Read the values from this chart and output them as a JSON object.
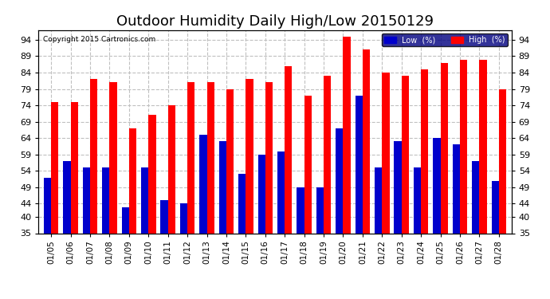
{
  "title": "Outdoor Humidity Daily High/Low 20150129",
  "copyright": "Copyright 2015 Cartronics.com",
  "dates": [
    "01/05",
    "01/06",
    "01/07",
    "01/08",
    "01/09",
    "01/10",
    "01/11",
    "01/12",
    "01/13",
    "01/14",
    "01/15",
    "01/16",
    "01/17",
    "01/18",
    "01/19",
    "01/20",
    "01/21",
    "01/22",
    "01/23",
    "01/24",
    "01/25",
    "01/26",
    "01/27",
    "01/28"
  ],
  "high": [
    75,
    75,
    82,
    81,
    67,
    71,
    74,
    81,
    81,
    79,
    82,
    81,
    86,
    77,
    83,
    95,
    91,
    84,
    83,
    85,
    87,
    88,
    88,
    79
  ],
  "low": [
    52,
    57,
    55,
    55,
    43,
    55,
    45,
    44,
    65,
    63,
    53,
    59,
    60,
    49,
    49,
    67,
    77,
    55,
    63,
    55,
    64,
    62,
    57,
    51
  ],
  "high_color": "#ff0000",
  "low_color": "#0000cc",
  "background_color": "#ffffff",
  "grid_color": "#c0c0c0",
  "ylim_min": 35,
  "ylim_max": 97,
  "yticks": [
    35,
    40,
    44,
    49,
    54,
    59,
    64,
    69,
    74,
    79,
    84,
    89,
    94
  ],
  "title_fontsize": 13,
  "bar_width": 0.38
}
